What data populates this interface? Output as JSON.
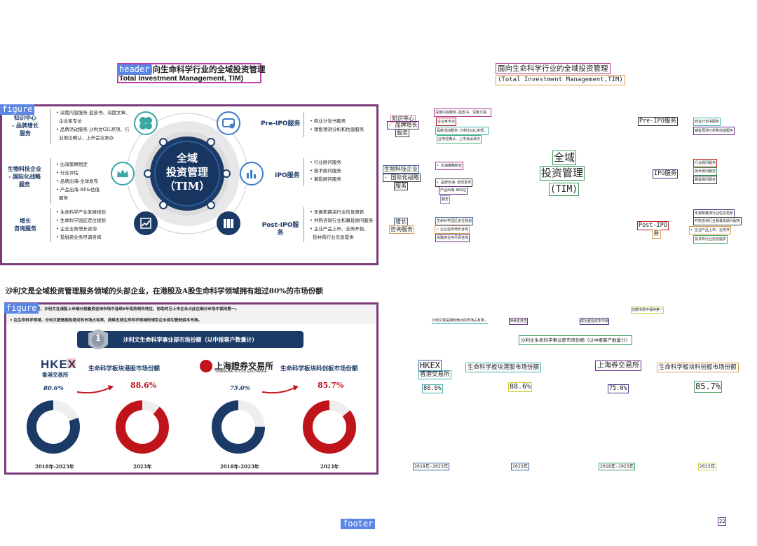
{
  "tags": {
    "header": "header",
    "figure1": "figure",
    "figure2": "figure",
    "footer": "footer"
  },
  "left": {
    "title_cn": "面向生命科学行业的全域投资管理",
    "title_en": "Total Investment Management, TIM)",
    "center": {
      "line1": "全域",
      "line2": "投资管理",
      "line3": "（TIM）"
    },
    "left_groups": [
      {
        "label1": "知识中心",
        "label2": "- 品牌增长",
        "label3": "服务",
        "bullets": [
          "深度内容服务-蓝皮书、深度文章、",
          "企业家专访",
          "品牌活动服务-沙利文GIL奖项、行",
          "业地位确认、上市会议承办"
        ]
      },
      {
        "label1": "生物科技企业",
        "label2": "- 国际化战略",
        "label3": "服务",
        "bullets": [
          "出海策略制定",
          "行业评估",
          "品牌出海-全球发布",
          "产品出海-BP&估值",
          "服务"
        ]
      },
      {
        "label1": "增长",
        "label2": "咨询服务",
        "label3": "",
        "bullets": [
          "生命科学产业发展规划",
          "生命科学园区定位规划",
          "企业业务增长咨询",
          "投融资业务尽调咨询"
        ]
      }
    ],
    "right_groups": [
      {
        "label": "Pre-IPO服务",
        "bullets": [
          "商业计划书服务",
          "销售预测分析和估值服务"
        ]
      },
      {
        "label": "IPO服务",
        "bullets": [
          "行业顾问服务",
          "技术顾问服务",
          "募投顾问服务"
        ]
      },
      {
        "label": "Post-IPO服务",
        "bullets": [
          "年报和路演行业信息更新",
          "并购咨询行业和募投顾问服务",
          "企业产品上市、业务开拓、",
          "投并购行业信息提供"
        ]
      }
    ],
    "headline": "沙利文是全域投资管理服务领域的头部企业，在港股及A股生命科学领域拥有超过80%的市场份额",
    "fig2": {
      "bullet1": "2023年三季度，沙利文在港股上市细分投融资咨询市场中连续8年保持领先地位，协助的已上市企业占此在细分市场中保持第一。",
      "bullet2": "在生命科学领域，沙利文更是拥有绝对的市场占有率，持续支持生命科学领域的领军企业成功登陆资本市场。",
      "banner_num": "1",
      "banner": "沙利文生命科学事业部市场份额（以中报客户数量计）",
      "hkex_logo": "HKEX",
      "hkex_sub": "香港交易所",
      "sse_logo": "上海證券交易所",
      "sse_sub": "SHANGHAI STOCK EXCHANGE",
      "hk_title": "生命科学板块港股市场份额",
      "a_title": "生命科学板块科创板市场份额",
      "donuts": [
        {
          "value": 80.6,
          "label": "80.6%",
          "period": "2018年-2023年",
          "color": "#1b3a66"
        },
        {
          "value": 88.6,
          "label": "88.6%",
          "period": "2023年",
          "color": "#c0141b"
        },
        {
          "value": 75.0,
          "label": "75.0%",
          "period": "2018年-2023年",
          "color": "#1b3a66"
        },
        {
          "value": 85.7,
          "label": "85.7%",
          "period": "2023年",
          "color": "#c0141b"
        }
      ]
    }
  },
  "right": {
    "title_cn": "面向生命科学行业的全域投资管理",
    "title_en": "(Total Investment Management,TIM)",
    "center": {
      "line1": "全域",
      "line2": "投资管理",
      "line3": "(TIM)"
    },
    "left_labels": [
      "知识中心",
      "- 品牌增长",
      "服务",
      "生物科技企业",
      "- 国际化战略",
      "服务",
      "增长",
      "咨询服务"
    ],
    "left_bullets": [
      "深度内容服务-蓝皮书、深度文章、",
      "企业家专访",
      "品牌活动服务-沙利文GIL奖项、",
      "业地位确认、上市会议承办",
      "• 出海策略制定",
      "• 品牌出海-全球发布",
      "产品出海-BP&估",
      "服务",
      "生命科学园区定位规划",
      "• 企业业务增长咨询",
      "投融资业务尽调咨询"
    ],
    "right_labels": [
      "Pre-IPO服务",
      "IPO服务",
      "Post-IPO",
      "务"
    ],
    "right_bullets": [
      "商业计划书服务",
      "销售预测分析和估值服务",
      "行业顾问服务",
      "技术顾问服务",
      "募投顾问服务",
      "年报和路演行业信息更新",
      "并购咨询行业和募投顾问服务",
      "• 企业产品上市、业务开",
      "投并购行业信息提供"
    ],
    "fig_texts": [
      "沙利文更是拥有绝对的市场占有率，",
      "持续支持生",
      "成功登陆资本市场",
      "份额市场中保持第一"
    ],
    "banner": "沙利文生命科学事业部市场份额（以中报客户数量计）",
    "hkex": "HKEX",
    "hkex_sub": "香港交易所",
    "hk_title": "生命科学板块港股市场份额",
    "sse": "上海券交易所",
    "a_title": "生命科学板块科创板市场份额",
    "pcts": [
      "80.6%",
      "88.6%",
      "75.0%",
      "85.7%"
    ],
    "periods": [
      "2018年-2023年",
      "2023年",
      "2018年-2023年",
      "2023年"
    ]
  },
  "page_number": "22"
}
